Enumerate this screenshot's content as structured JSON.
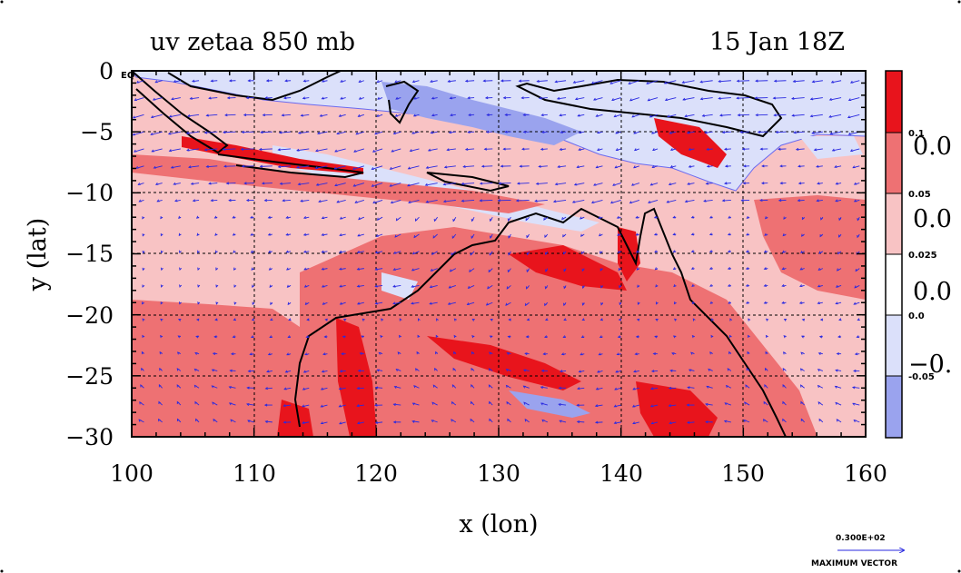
{
  "chart_data": {
    "type": "heatmap",
    "title": "uv zetaa 850 mb",
    "subtitle": "15 Jan 18Z",
    "xlabel": "x (lon)",
    "ylabel": "y (lat)",
    "xlim": [
      100,
      160
    ],
    "ylim": [
      -30,
      0
    ],
    "x_ticks": [
      "100",
      "110",
      "120",
      "130",
      "140",
      "150",
      "160"
    ],
    "x_tick_values": [
      100,
      110,
      120,
      130,
      140,
      150,
      160
    ],
    "y_ticks": [
      "0",
      "−5",
      "−10",
      "−15",
      "−20",
      "−25",
      "−30"
    ],
    "y_tick_values": [
      0,
      -5,
      -10,
      -15,
      -20,
      -25,
      -30
    ],
    "eq_label": "EQ",
    "grid": true,
    "colorbar": {
      "bands": [
        {
          "color": "#e8141c"
        },
        {
          "color": "#ee7173"
        },
        {
          "color": "#f8c3c4"
        },
        {
          "color": "#ffffff"
        },
        {
          "color": "#dbe0fa"
        },
        {
          "color": "#9aa3ee"
        }
      ],
      "small_labels": [
        "0.1",
        "0.05",
        "0.025",
        "0.0",
        "-0.05"
      ],
      "big_labels": [
        "0.0",
        "0.0",
        "0.0",
        "−0."
      ]
    },
    "vector_legend": {
      "value": "0.300E+02",
      "caption": "MAXIMUM VECTOR"
    }
  },
  "colors": {
    "vector": "#2a2ae0",
    "coast": "#000000"
  }
}
